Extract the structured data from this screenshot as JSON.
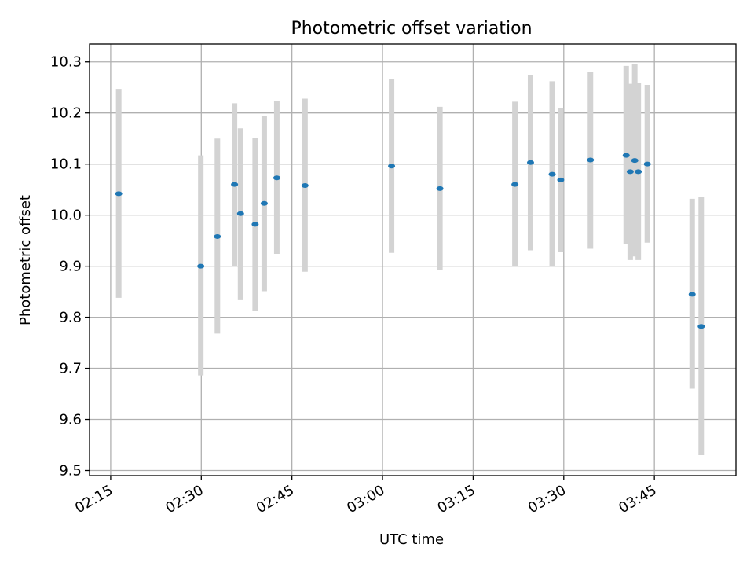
{
  "chart_data": {
    "type": "scatter",
    "title": "Photometric offset variation",
    "xlabel": "UTC time",
    "ylabel": "Photometric offset",
    "grid": true,
    "xlim": [
      "02:11:30",
      "03:58:30"
    ],
    "ylim": [
      9.49,
      10.335
    ],
    "x_ticks": [
      "02:15",
      "02:30",
      "02:45",
      "03:00",
      "03:15",
      "03:30",
      "03:45"
    ],
    "y_ticks": [
      9.5,
      9.6,
      9.7,
      9.8,
      9.9,
      10.0,
      10.1,
      10.2,
      10.3
    ],
    "colors": {
      "point": "#1f77b4",
      "errorbar": "#d3d3d3",
      "grid": "#b0b0b0"
    },
    "points": [
      {
        "x": "02:16:20",
        "y": 10.042,
        "ylow": 9.838,
        "yhigh": 10.247
      },
      {
        "x": "02:29:55",
        "y": 9.9,
        "ylow": 9.686,
        "yhigh": 10.117
      },
      {
        "x": "02:32:40",
        "y": 9.958,
        "ylow": 9.768,
        "yhigh": 10.15
      },
      {
        "x": "02:35:30",
        "y": 10.06,
        "ylow": 9.9,
        "yhigh": 10.219
      },
      {
        "x": "02:36:30",
        "y": 10.003,
        "ylow": 9.835,
        "yhigh": 10.17
      },
      {
        "x": "02:38:55",
        "y": 9.982,
        "ylow": 9.813,
        "yhigh": 10.151
      },
      {
        "x": "02:40:25",
        "y": 10.023,
        "ylow": 9.851,
        "yhigh": 10.195
      },
      {
        "x": "02:42:30",
        "y": 10.073,
        "ylow": 9.924,
        "yhigh": 10.224
      },
      {
        "x": "02:47:10",
        "y": 10.058,
        "ylow": 9.889,
        "yhigh": 10.228
      },
      {
        "x": "03:01:30",
        "y": 10.096,
        "ylow": 9.926,
        "yhigh": 10.266
      },
      {
        "x": "03:09:30",
        "y": 10.052,
        "ylow": 9.892,
        "yhigh": 10.212
      },
      {
        "x": "03:21:55",
        "y": 10.06,
        "ylow": 9.899,
        "yhigh": 10.222
      },
      {
        "x": "03:24:30",
        "y": 10.103,
        "ylow": 9.931,
        "yhigh": 10.275
      },
      {
        "x": "03:28:05",
        "y": 10.08,
        "ylow": 9.899,
        "yhigh": 10.262
      },
      {
        "x": "03:29:30",
        "y": 10.069,
        "ylow": 9.928,
        "yhigh": 10.21
      },
      {
        "x": "03:34:25",
        "y": 10.108,
        "ylow": 9.934,
        "yhigh": 10.281
      },
      {
        "x": "03:40:20",
        "y": 10.117,
        "ylow": 9.943,
        "yhigh": 10.292
      },
      {
        "x": "03:41:00",
        "y": 10.085,
        "ylow": 9.912,
        "yhigh": 10.257
      },
      {
        "x": "03:41:45",
        "y": 10.107,
        "ylow": 9.919,
        "yhigh": 10.296
      },
      {
        "x": "03:42:20",
        "y": 10.085,
        "ylow": 9.912,
        "yhigh": 10.258
      },
      {
        "x": "03:43:50",
        "y": 10.1,
        "ylow": 9.946,
        "yhigh": 10.255
      },
      {
        "x": "03:51:15",
        "y": 9.845,
        "ylow": 9.66,
        "yhigh": 10.032
      },
      {
        "x": "03:52:45",
        "y": 9.782,
        "ylow": 9.53,
        "yhigh": 10.035
      }
    ]
  }
}
